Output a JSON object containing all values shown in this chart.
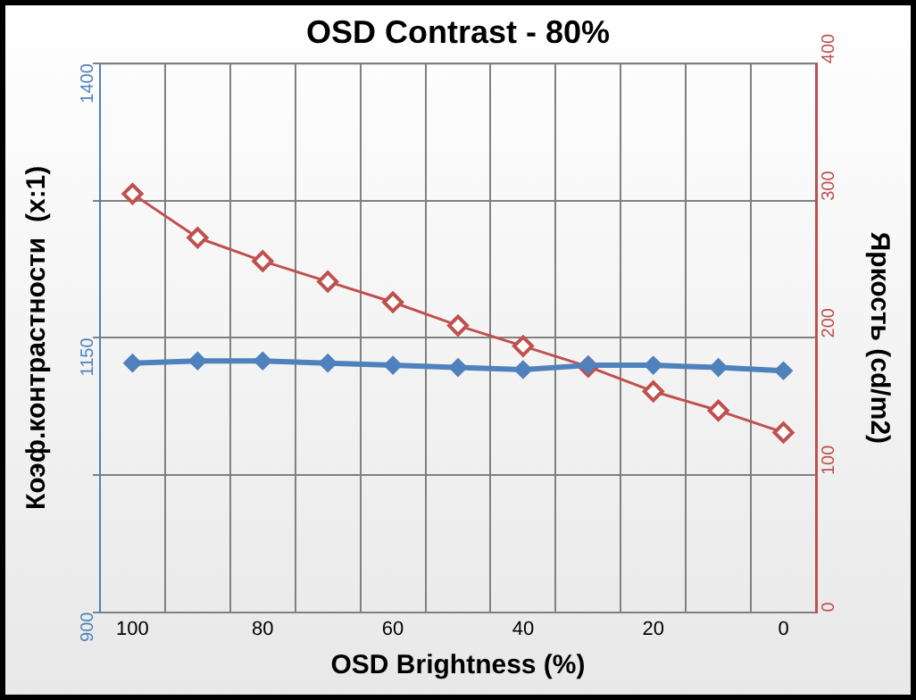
{
  "chart_data": {
    "type": "line",
    "title": "OSD Contrast - 80%",
    "xlabel": "OSD Brightness (%)",
    "ylabel": "Коэф.контрастности  (x:1)",
    "y2label": "Яркость (cd/m2)",
    "x": [
      100,
      90,
      80,
      70,
      60,
      50,
      40,
      30,
      20,
      10,
      0
    ],
    "xlim": [
      105,
      -5
    ],
    "xticks": [
      100,
      {
        "value": 95,
        "label": null
      },
      {
        "value": 85,
        "label": null
      },
      80,
      {
        "value": 75,
        "label": null
      },
      {
        "value": 65,
        "label": null
      },
      60,
      {
        "value": 55,
        "label": null
      },
      {
        "value": 45,
        "label": null
      },
      40,
      {
        "value": 35,
        "label": null
      },
      {
        "value": 25,
        "label": null
      },
      20,
      {
        "value": 15,
        "label": null
      },
      {
        "value": 5,
        "label": null
      },
      0
    ],
    "ylim": [
      900,
      1400
    ],
    "yticks": [
      900,
      {
        "value": 1025,
        "label": null
      },
      1150,
      {
        "value": 1275,
        "label": null
      },
      1400
    ],
    "y2lim": [
      0,
      400
    ],
    "y2ticks": [
      0,
      100,
      200,
      300,
      400
    ],
    "grid": true,
    "legend": false,
    "line_style": "solid",
    "series": [
      {
        "color": "#4f81bd",
        "marker": "diamond",
        "values": [
          1127,
          1129,
          1129,
          1127,
          1125,
          1123,
          1121,
          1125,
          1125,
          1123,
          1120
        ]
      },
      {
        "color": "#c0504d",
        "marker": "diamond",
        "axis": "y2",
        "values": [
          305,
          273,
          256,
          241,
          226,
          209,
          194,
          179,
          161,
          147,
          131
        ]
      }
    ]
  }
}
